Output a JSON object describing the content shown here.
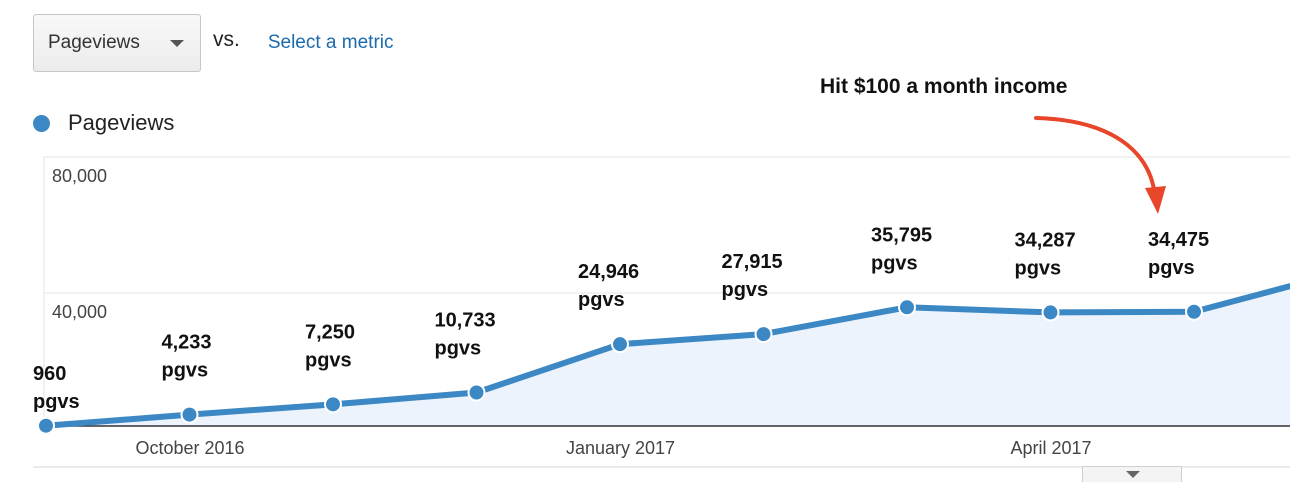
{
  "metric_selector": {
    "selected": "Pageviews",
    "vs_label": "vs.",
    "select_link": "Select a metric"
  },
  "legend": {
    "label": "Pageviews",
    "color": "#3b88c4"
  },
  "annotation": {
    "text": "Hit $100 a month income",
    "arrow_color": "#e8462b"
  },
  "chart_data": {
    "type": "area",
    "title": "",
    "xlabel": "",
    "ylabel": "",
    "ylim": [
      0,
      80000
    ],
    "yticks": [
      {
        "value": 40000,
        "label": "40,000"
      },
      {
        "value": 80000,
        "label": "80,000"
      }
    ],
    "xticks": [
      {
        "index": 1,
        "label": "October 2016"
      },
      {
        "index": 4,
        "label": "January 2017"
      },
      {
        "index": 7,
        "label": "April 2017"
      }
    ],
    "grid": true,
    "legend_position": "top-left",
    "series": [
      {
        "name": "Pageviews",
        "color": "#3b88c4",
        "fill": "#edf3fc",
        "values": [
          960,
          4233,
          7250,
          10733,
          24946,
          27915,
          35795,
          34287,
          34475,
          42000
        ],
        "labels": [
          [
            "960",
            "pgvs"
          ],
          [
            "4,233",
            "pgvs"
          ],
          [
            "7,250",
            "pgvs"
          ],
          [
            "10,733",
            "pgvs"
          ],
          [
            "24,946",
            "pgvs"
          ],
          [
            "27,915",
            "pgvs"
          ],
          [
            "35,795",
            "pgvs"
          ],
          [
            "34,287",
            "pgvs"
          ],
          [
            "34,475",
            "pgvs"
          ],
          null
        ]
      }
    ]
  }
}
